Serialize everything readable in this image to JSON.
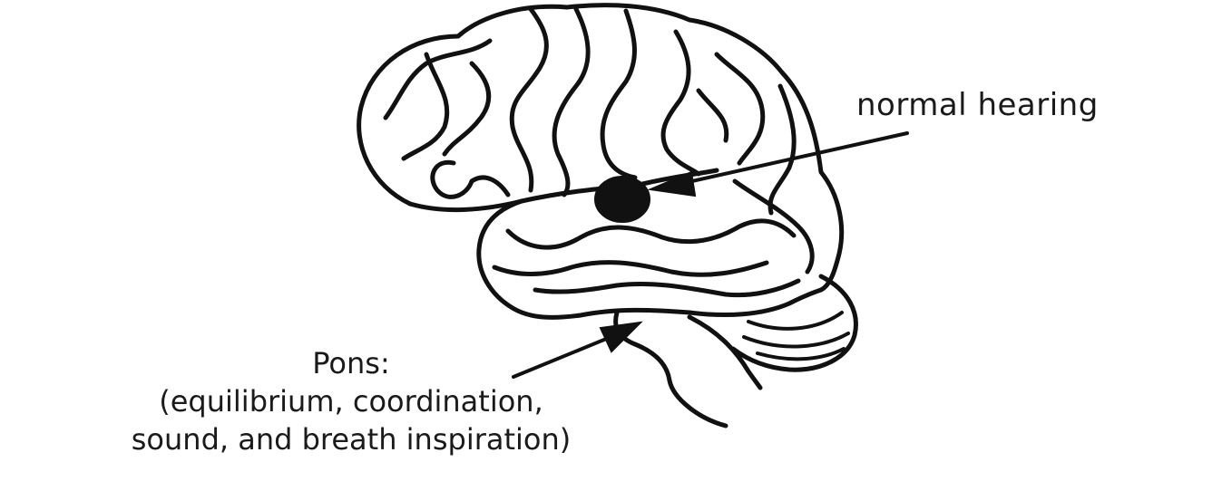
{
  "labels": {
    "hearing": "normal hearing",
    "pons_title": "Pons:",
    "pons_line1": "(equilibrium, coordination,",
    "pons_line2": "sound, and breath inspiration)"
  },
  "colors": {
    "ink": "#111111",
    "background": "#ffffff"
  }
}
